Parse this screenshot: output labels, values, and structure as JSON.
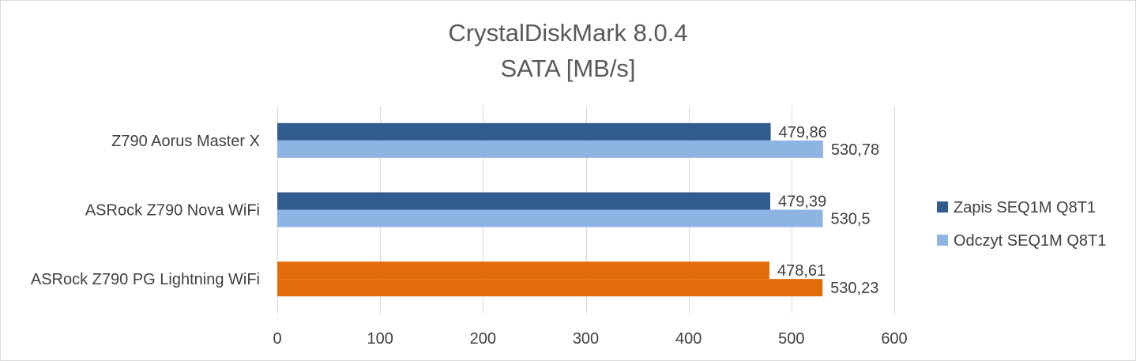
{
  "chart_data": {
    "type": "bar",
    "orientation": "horizontal",
    "title": "CrystalDiskMark 8.0.4",
    "subtitle": "SATA [MB/s]",
    "categories": [
      "Z790 Aorus Master X",
      "ASRock Z790 Nova WiFi",
      "ASRock Z790 PG Lightning WiFi"
    ],
    "series": [
      {
        "name": "Zapis SEQ1M Q8T1",
        "values": [
          479.86,
          479.39,
          478.61
        ],
        "labels": [
          "479,86",
          "479,39",
          "478,61"
        ],
        "color": "#335c8e"
      },
      {
        "name": "Odczyt SEQ1M Q8T1",
        "values": [
          530.78,
          530.5,
          530.23
        ],
        "labels": [
          "530,78",
          "530,5",
          "530,23"
        ],
        "color": "#8eb4e3"
      }
    ],
    "highlight": {
      "category_index": 2,
      "color": "#e36c0a"
    },
    "xlim": [
      0,
      600
    ],
    "xticks": [
      0,
      100,
      200,
      300,
      400,
      500,
      600
    ],
    "grid": true,
    "legend_position": "right"
  }
}
